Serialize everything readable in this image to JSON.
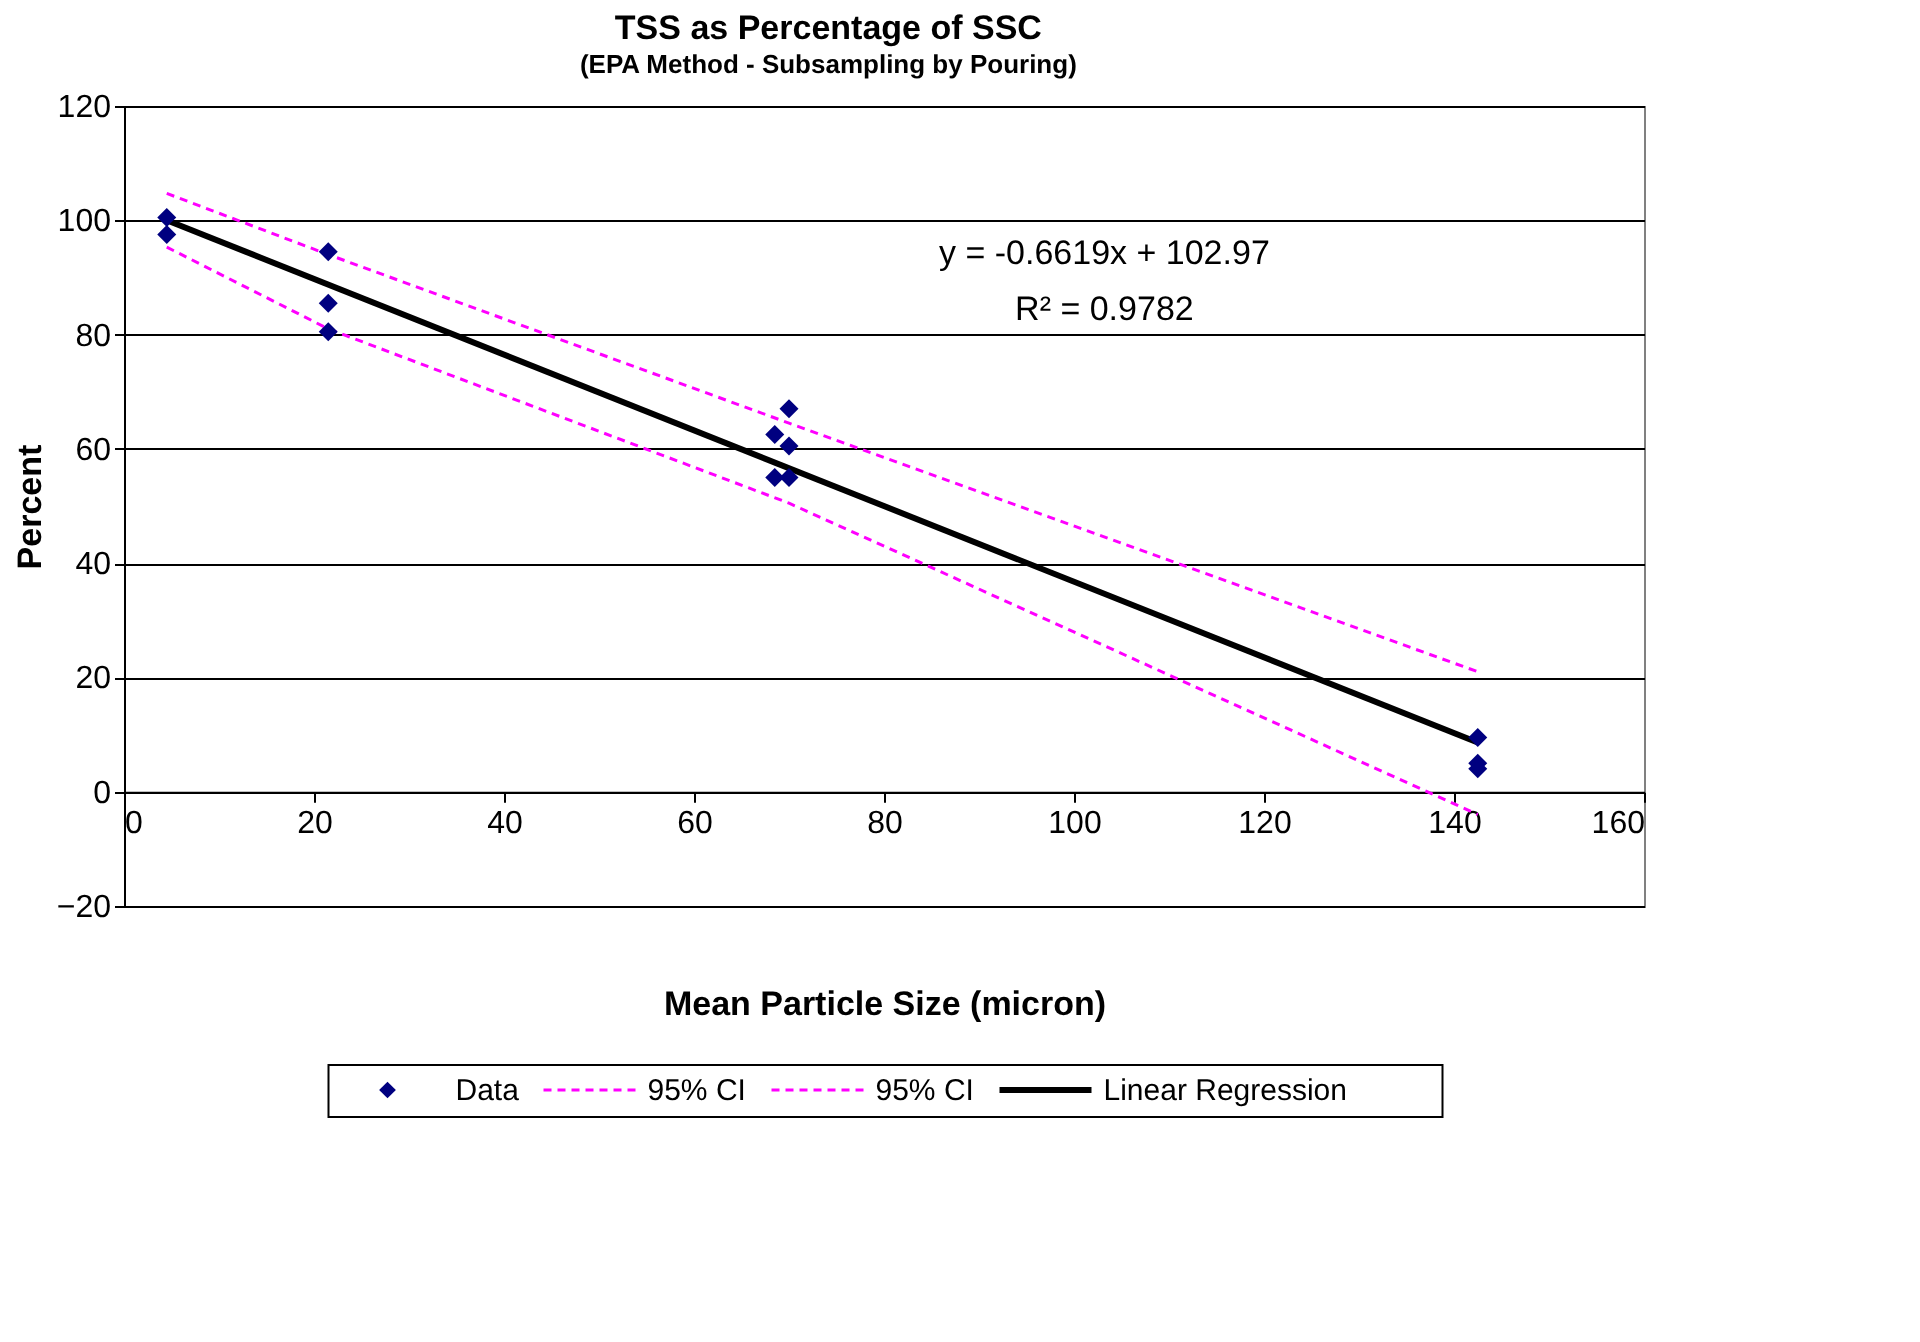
{
  "chart_data": {
    "type": "scatter",
    "title": "TSS as Percentage of SSC",
    "subtitle": "(EPA Method - Subsampling by Pouring)",
    "xlabel": "Mean Particle Size (micron)",
    "ylabel": "Percent",
    "xlim": [
      0,
      160
    ],
    "xticks": [
      0,
      20,
      40,
      60,
      80,
      100,
      120,
      140,
      160
    ],
    "ylim": [
      -20,
      120
    ],
    "yticks": [
      -20,
      0,
      20,
      40,
      60,
      80,
      100,
      120
    ],
    "grid": "y",
    "legend": "bottom",
    "annotations": [
      "y = -0.6619x + 102.97",
      "R² = 0.9782"
    ],
    "series": [
      {
        "name": "Data",
        "marker": "diamond",
        "color": "#000080",
        "x": [
          4.5,
          4.5,
          21.5,
          21.5,
          21.5,
          68.5,
          68.5,
          70,
          70,
          70,
          142.5,
          142.5,
          142.5
        ],
        "values": [
          100.5,
          97.5,
          94.5,
          85.5,
          80.5,
          62.5,
          55,
          67,
          60.5,
          55,
          9.5,
          5,
          4
        ]
      },
      {
        "name": "95% CI",
        "type": "line",
        "line_style": "dashed",
        "color": "#ff00ff",
        "x": [
          4.5,
          21.5,
          70,
          142.5
        ],
        "values": [
          104.7,
          94,
          64.5,
          21
        ]
      },
      {
        "name": "95% CI",
        "type": "line",
        "line_style": "dashed",
        "color": "#ff00ff",
        "x": [
          4.5,
          21.5,
          70,
          142.5
        ],
        "values": [
          95.3,
          81,
          50.5,
          -4
        ]
      },
      {
        "name": "Linear Regression",
        "type": "line",
        "line_style": "solid",
        "color": "#000000",
        "x": [
          4.5,
          142.5
        ],
        "values": [
          100.0,
          8.6
        ]
      }
    ]
  }
}
